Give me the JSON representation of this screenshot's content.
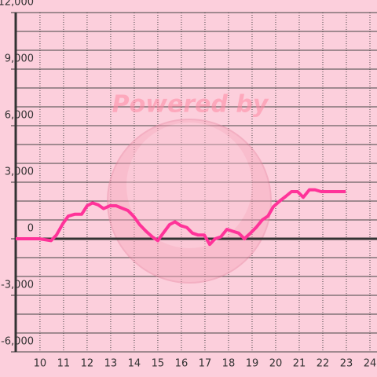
{
  "chart_data": {
    "type": "line",
    "watermark": "Powered by",
    "x": [
      8.97,
      9.97,
      10.47,
      10.7,
      10.97,
      11.2,
      11.47,
      11.77,
      12.0,
      12.23,
      12.47,
      12.7,
      12.97,
      13.23,
      13.53,
      13.73,
      13.97,
      14.23,
      14.5,
      14.77,
      15.0,
      15.23,
      15.5,
      15.73,
      15.97,
      16.23,
      16.47,
      16.7,
      16.97,
      17.2,
      17.43,
      17.67,
      17.93,
      18.17,
      18.43,
      18.67,
      18.93,
      19.17,
      19.43,
      19.67,
      19.9,
      20.17,
      20.43,
      20.67,
      20.93,
      21.17,
      21.43,
      21.67,
      21.93,
      22.2,
      22.47,
      22.7,
      22.97
    ],
    "series": [
      {
        "color": "#ff3399",
        "values": [
          0,
          0,
          -100,
          200,
          800,
          1200,
          1300,
          1300,
          1750,
          1900,
          1800,
          1600,
          1750,
          1750,
          1600,
          1500,
          1200,
          750,
          400,
          100,
          -100,
          300,
          750,
          900,
          700,
          600,
          300,
          200,
          200,
          -300,
          0,
          100,
          500,
          400,
          300,
          0,
          300,
          600,
          1000,
          1200,
          1700,
          2000,
          2250,
          2500,
          2500,
          2200,
          2600,
          2600,
          2500,
          2500,
          2500,
          2500,
          2500
        ]
      }
    ],
    "xlim": [
      8.97,
      24.3
    ],
    "ylim": [
      -6000,
      12000
    ],
    "xticks": [
      10,
      11,
      12,
      13,
      14,
      15,
      16,
      17,
      18,
      19,
      20,
      21,
      22,
      23,
      24
    ],
    "yticks": [
      {
        "value": -6000,
        "label": "-6,000"
      },
      {
        "value": -3000,
        "label": "-3,000"
      },
      0,
      {
        "value": 3000,
        "label": "3,000"
      },
      {
        "value": 6000,
        "label": "6,000"
      },
      {
        "value": 9000,
        "label": "9,000"
      },
      {
        "value": 12000,
        "label": "12,000"
      }
    ],
    "grid": true
  }
}
